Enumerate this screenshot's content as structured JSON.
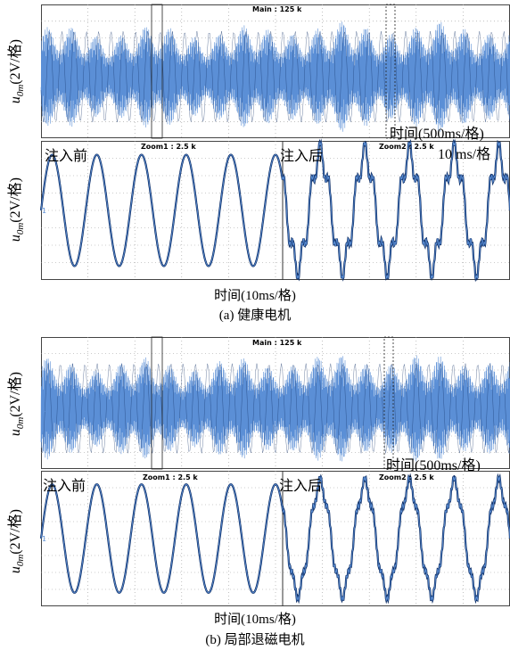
{
  "figure": {
    "panels": [
      {
        "main_label": "Main : 125 k",
        "zoom1_label": "Zoom1 : 2.5 k",
        "zoom2_label": "Zoom2 : 2.5 k",
        "ylabel_var": "u",
        "ylabel_sub": "0m",
        "ylabel_unit": "(2V/格)",
        "time_main": "时间(500ms/格)",
        "time_zoom_inline": "10 ms/格",
        "before": "注入前",
        "after": "注入后",
        "time_zoom": "时间(10ms/格)",
        "caption": "(a)  健康电机"
      },
      {
        "main_label": "Main : 125 k",
        "zoom1_label": "Zoom1 : 2.5 k",
        "zoom2_label": "Zoom2 : 2.5 k",
        "ylabel_var": "u",
        "ylabel_sub": "0m",
        "ylabel_unit": "(2V/格)",
        "time_main": "时间(500ms/格)",
        "before": "注入前",
        "after": "注入后",
        "time_zoom": "时间(10ms/格)",
        "caption": "(b)  局部退磁电机"
      }
    ],
    "colors": {
      "trace_light": "#5b8fd6",
      "trace_dark": "#0f2f66",
      "grid": "#9a9a9a",
      "frame": "#444444"
    }
  }
}
